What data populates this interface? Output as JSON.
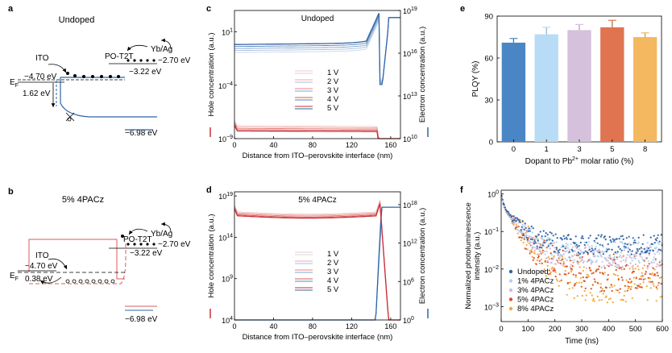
{
  "panels": {
    "a": {
      "letter": "a",
      "title": "Undoped",
      "ito": "ITO",
      "ef": "E",
      "ef_sub": "F",
      "ito_level": "−4.70 eV",
      "gap": "1.62 eV",
      "po": "PO-T2T",
      "yb": "Yb/Ag",
      "yb_level": "−2.70 eV",
      "cb": "−3.22 eV",
      "vb": "−6.98 eV"
    },
    "b": {
      "letter": "b",
      "title": "5% 4PACz",
      "ito": "ITO",
      "ef": "E",
      "ef_sub": "F",
      "ito_level": "−4.70 eV",
      "gap": "0.38 eV",
      "po": "PO-T2T",
      "yb": "Yb/Ag",
      "yb_level": "−2.70 eV",
      "cb": "−3.22 eV",
      "vb": "−6.98 eV"
    }
  },
  "chart_data": [
    {
      "id": "c",
      "type": "line",
      "title": "Undoped",
      "xlabel": "Distance from ITO–perovskite interface (nm)",
      "ylabel_left": "Hole concentration (a.u.)",
      "ylabel_right": "Electron concentration (a.u.)",
      "xlim": [
        0,
        170
      ],
      "xticks": [
        0,
        40,
        80,
        120,
        160
      ],
      "ylim_left_log": [
        -9,
        3
      ],
      "yticks_left": [
        {
          "label": "10",
          "exp": "1",
          "v": 1
        },
        {
          "label": "10",
          "exp": "−4",
          "v": -4
        },
        {
          "label": "10",
          "exp": "−9",
          "v": -9
        }
      ],
      "ylim_right_log": [
        10,
        19
      ],
      "yticks_right": [
        {
          "label": "10",
          "exp": "19",
          "v": 19
        },
        {
          "label": "10",
          "exp": "16",
          "v": 16
        },
        {
          "label": "10",
          "exp": "13",
          "v": 13
        },
        {
          "label": "10",
          "exp": "10",
          "v": 10
        }
      ],
      "legend": [
        "1 V",
        "2 V",
        "3 V",
        "4 V",
        "5 V"
      ],
      "hole_colors": [
        "#f4c7c3",
        "#eeaaa7",
        "#e58684",
        "#d95b5b",
        "#c8323a"
      ],
      "electron_colors": [
        "#c8d7ea",
        "#a9c1de",
        "#84a6cf",
        "#5a86bd",
        "#2f64a6"
      ]
    },
    {
      "id": "d",
      "type": "line",
      "title": "5% 4PACz",
      "xlabel": "Distance from ITO–perovskite interface (nm)",
      "ylabel_left": "Hole concentration (a.u.)",
      "ylabel_right": "Electron concentration (a.u.)",
      "xlim": [
        0,
        170
      ],
      "xticks": [
        0,
        40,
        80,
        120,
        160
      ],
      "ylim_left_log": [
        4,
        19.5
      ],
      "yticks_left": [
        {
          "label": "10",
          "exp": "19",
          "v": 19
        },
        {
          "label": "10",
          "exp": "14",
          "v": 14
        },
        {
          "label": "10",
          "exp": "9",
          "v": 9
        },
        {
          "label": "10",
          "exp": "4",
          "v": 4
        }
      ],
      "ylim_right_log": [
        0,
        20
      ],
      "yticks_right": [
        {
          "label": "10",
          "exp": "18",
          "v": 18
        },
        {
          "label": "10",
          "exp": "12",
          "v": 12
        },
        {
          "label": "10",
          "exp": "6",
          "v": 6
        },
        {
          "label": "10",
          "exp": "0",
          "v": 0
        }
      ],
      "legend": [
        "1 V",
        "2 V",
        "3 V",
        "4 V",
        "5 V"
      ],
      "hole_colors": [
        "#f4c7c3",
        "#eeaaa7",
        "#e58684",
        "#d95b5b",
        "#c8323a"
      ],
      "electron_colors": [
        "#c8d7ea",
        "#a9c1de",
        "#84a6cf",
        "#5a86bd",
        "#2f64a6"
      ]
    },
    {
      "id": "e",
      "type": "bar",
      "xlabel": "Dopant to Pb",
      "xlabel_sup": "2+",
      "xlabel_tail": " molar ratio (%)",
      "ylabel": "PLQY (%)",
      "categories": [
        "0",
        "1",
        "3",
        "5",
        "8"
      ],
      "values": [
        71,
        77,
        80,
        82,
        75
      ],
      "errors": [
        3,
        5,
        4,
        5,
        3
      ],
      "colors": [
        "#4a86c5",
        "#b8dcf5",
        "#d6c1dd",
        "#e07450",
        "#f4b860"
      ],
      "ylim": [
        0,
        90
      ],
      "yticks": [
        0,
        30,
        60,
        90
      ]
    },
    {
      "id": "f",
      "type": "scatter",
      "xlabel": "Time (ns)",
      "ylabel_line1": "Normalized photoluminescence",
      "ylabel_line2": "intensity (a.u.)",
      "xlim": [
        0,
        600
      ],
      "xticks": [
        0,
        100,
        200,
        300,
        400,
        500,
        600
      ],
      "ylim_log": [
        -3.4,
        0.1
      ],
      "yticks": [
        {
          "label": "10",
          "exp": "0",
          "v": 0
        },
        {
          "label": "10",
          "exp": "−1",
          "v": -1
        },
        {
          "label": "10",
          "exp": "−2",
          "v": -2
        },
        {
          "label": "10",
          "exp": "−3",
          "v": -3
        }
      ],
      "series": [
        {
          "name": "Undoped",
          "color": "#2f64a6",
          "floor": 0.045
        },
        {
          "name": "1% 4PACz",
          "color": "#aed4ef",
          "floor": 0.028
        },
        {
          "name": "3% 4PACz",
          "color": "#d3b8da",
          "floor": 0.02
        },
        {
          "name": "5% 4PACz",
          "color": "#d9542a",
          "floor": 0.008
        },
        {
          "name": "8% 4PACz",
          "color": "#f2a93b",
          "floor": 0.004
        }
      ]
    }
  ],
  "panel_letters": {
    "c": "c",
    "d": "d",
    "e": "e",
    "f": "f"
  }
}
